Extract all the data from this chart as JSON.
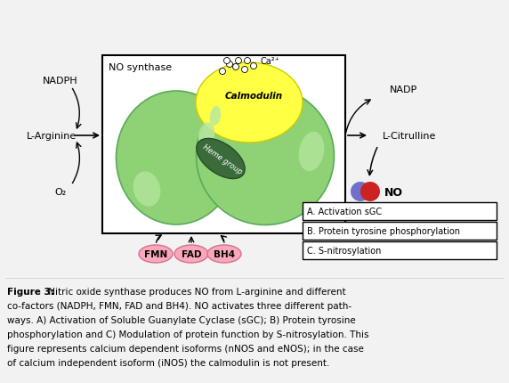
{
  "title": "NO synthase",
  "left_label_nadph": "NADPH",
  "left_label_arg": "L-Arginine",
  "left_label_o2": "O₂",
  "right_label_nadp": "NADP",
  "right_label_cit": "L-Citrulline",
  "right_label_no": "NO",
  "box_items": [
    "A. Activation sGC",
    "B. Protein tyrosine phosphorylation",
    "C. S-nitrosylation"
  ],
  "cofactors": [
    "FMN",
    "FAD",
    "BH4"
  ],
  "calmodulin_label": "Calmodulin",
  "heme_label": "Heme group",
  "ca_label": "Ca²⁺",
  "bg_color": "#f2f2f2",
  "green_main": "#8FD175",
  "green_highlight": "#b8e8a0",
  "yellow_cal": "#FFFF44",
  "heme_green_dark": "#3a6b3a",
  "heme_green_border": "#2a4a2a",
  "pink_cofactor": "#F9A8BB",
  "pink_cofactor_border": "#d47090",
  "blue_no": "#7070cc",
  "red_no": "#cc2222",
  "caption_bold": "Figure 3:",
  "caption_normal": " Nitric oxide synthase produces NO from L-arginine and different co-factors (NADPH, FMN, FAD and BH4). NO activates three different path-\nways. A) Activation of Soluble Guanylate Cyclase (sGC); B) Protein tyrosine phosphorylation and C) Modulation of protein function by S-nitrosylation. This\nfigure represents calcium dependent isoforms (nNOS and eNOS); in the case of calcium independent isoform (iNOS) the calmodulin is not present."
}
